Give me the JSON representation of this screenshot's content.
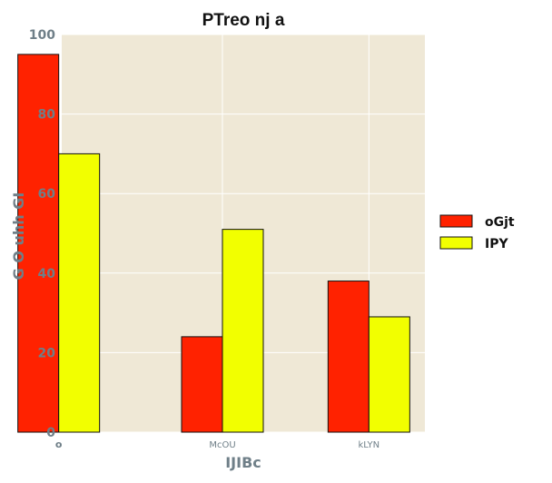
{
  "chart_data": {
    "type": "bar",
    "title": "PTreo nj a",
    "xlabel": "IJIBc",
    "ylabel": "G  O  uhh GI",
    "categories": [
      "o",
      "McOU",
      "kLYN"
    ],
    "series": [
      {
        "name": "oGjt",
        "color": "#ff2200",
        "values": [
          95,
          24,
          38
        ]
      },
      {
        "name": "IPY",
        "color": "#f2ff00",
        "values": [
          70,
          51,
          29
        ]
      }
    ],
    "ylim": [
      0,
      100
    ],
    "yticks": [
      0,
      20,
      40,
      60,
      80,
      100
    ],
    "grid": true,
    "legend": "center-right",
    "colors": {
      "plot_background": "#efe8d6",
      "grid": "#ffffff",
      "bar_edge": "#111111"
    }
  }
}
